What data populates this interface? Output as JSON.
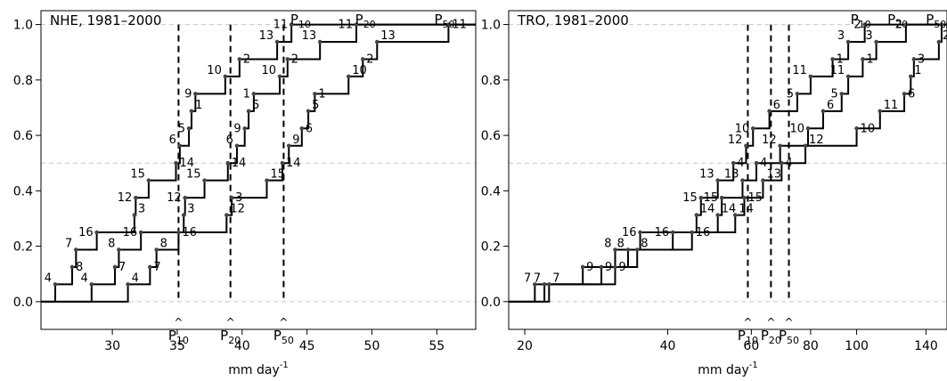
{
  "chart_data": [
    {
      "type": "line",
      "panel_label": "NHE, 1981–2000",
      "xlabel": "mm day",
      "xlabel_superscript": "-1",
      "ylabel": "",
      "xlim": [
        24.5,
        58
      ],
      "ylim": [
        -0.1,
        1.05
      ],
      "x_scale": "linear",
      "xticks": [
        30,
        35,
        40,
        45,
        50,
        55
      ],
      "yticks": [
        0.0,
        0.2,
        0.4,
        0.6,
        0.8,
        1.0
      ],
      "reference_lines": [
        0.0,
        0.5,
        1.0
      ],
      "estimates": [
        {
          "name": "P",
          "sub": "10",
          "x": 35.1
        },
        {
          "name": "P",
          "sub": "20",
          "x": 39.1
        },
        {
          "name": "P",
          "sub": "50",
          "x": 43.2
        }
      ],
      "series": [
        {
          "name": "P10",
          "label_sub": "10",
          "label_x": 44.5,
          "points": [
            {
              "x": 25.6,
              "y": 0.0625,
              "tag": "4"
            },
            {
              "x": 26.9,
              "y": 0.125,
              "tag": "8"
            },
            {
              "x": 27.2,
              "y": 0.1875,
              "tag": "7"
            },
            {
              "x": 28.8,
              "y": 0.25,
              "tag": "16"
            },
            {
              "x": 31.7,
              "y": 0.3125,
              "tag": "3"
            },
            {
              "x": 31.8,
              "y": 0.375,
              "tag": "12"
            },
            {
              "x": 32.8,
              "y": 0.4375,
              "tag": "15"
            },
            {
              "x": 34.9,
              "y": 0.5,
              "tag": "14"
            },
            {
              "x": 35.2,
              "y": 0.5625,
              "tag": "6"
            },
            {
              "x": 35.9,
              "y": 0.625,
              "tag": "5"
            },
            {
              "x": 36.1,
              "y": 0.6875,
              "tag": "1"
            },
            {
              "x": 36.4,
              "y": 0.75,
              "tag": "9"
            },
            {
              "x": 38.7,
              "y": 0.8125,
              "tag": "10"
            },
            {
              "x": 39.8,
              "y": 0.875,
              "tag": "2"
            },
            {
              "x": 42.7,
              "y": 0.9375,
              "tag": "13"
            },
            {
              "x": 43.8,
              "y": 1.0,
              "tag": "11"
            }
          ]
        },
        {
          "name": "P20",
          "label_sub": "20",
          "label_x": 49.5,
          "points": [
            {
              "x": 28.4,
              "y": 0.0625,
              "tag": "4"
            },
            {
              "x": 30.2,
              "y": 0.125,
              "tag": "7"
            },
            {
              "x": 30.5,
              "y": 0.1875,
              "tag": "8"
            },
            {
              "x": 32.2,
              "y": 0.25,
              "tag": "16"
            },
            {
              "x": 35.5,
              "y": 0.3125,
              "tag": "3"
            },
            {
              "x": 35.6,
              "y": 0.375,
              "tag": "12"
            },
            {
              "x": 37.1,
              "y": 0.4375,
              "tag": "15"
            },
            {
              "x": 38.9,
              "y": 0.5,
              "tag": "14"
            },
            {
              "x": 39.6,
              "y": 0.5625,
              "tag": "6"
            },
            {
              "x": 40.2,
              "y": 0.625,
              "tag": "9"
            },
            {
              "x": 40.5,
              "y": 0.6875,
              "tag": "5"
            },
            {
              "x": 40.9,
              "y": 0.75,
              "tag": "1"
            },
            {
              "x": 42.9,
              "y": 0.8125,
              "tag": "10"
            },
            {
              "x": 43.5,
              "y": 0.875,
              "tag": "2"
            },
            {
              "x": 46.0,
              "y": 0.9375,
              "tag": "13"
            },
            {
              "x": 48.8,
              "y": 1.0,
              "tag": "11"
            }
          ]
        },
        {
          "name": "P50",
          "label_sub": "50",
          "label_x": 55.6,
          "points": [
            {
              "x": 31.2,
              "y": 0.0625,
              "tag": "4"
            },
            {
              "x": 32.9,
              "y": 0.125,
              "tag": "7"
            },
            {
              "x": 33.4,
              "y": 0.1875,
              "tag": "8"
            },
            {
              "x": 35.1,
              "y": 0.25,
              "tag": "16"
            },
            {
              "x": 38.8,
              "y": 0.3125,
              "tag": "12"
            },
            {
              "x": 39.2,
              "y": 0.375,
              "tag": "3"
            },
            {
              "x": 41.9,
              "y": 0.4375,
              "tag": "15"
            },
            {
              "x": 43.1,
              "y": 0.5,
              "tag": "14"
            },
            {
              "x": 43.6,
              "y": 0.5625,
              "tag": "9"
            },
            {
              "x": 44.6,
              "y": 0.625,
              "tag": "6"
            },
            {
              "x": 45.1,
              "y": 0.6875,
              "tag": "5"
            },
            {
              "x": 45.6,
              "y": 0.75,
              "tag": "1"
            },
            {
              "x": 48.2,
              "y": 0.8125,
              "tag": "10"
            },
            {
              "x": 49.3,
              "y": 0.875,
              "tag": "2"
            },
            {
              "x": 50.4,
              "y": 0.9375,
              "tag": "13"
            },
            {
              "x": 55.9,
              "y": 1.0,
              "tag": "11"
            }
          ]
        }
      ]
    },
    {
      "type": "line",
      "panel_label": "TRO, 1981–2000",
      "xlabel": "mm day",
      "xlabel_superscript": "-1",
      "ylabel": "",
      "xlim": [
        18.5,
        155
      ],
      "ylim": [
        -0.1,
        1.05
      ],
      "x_scale": "log",
      "xticks": [
        20,
        40,
        60,
        80,
        100,
        140
      ],
      "yticks": [
        0.0,
        0.2,
        0.4,
        0.6,
        0.8,
        1.0
      ],
      "reference_lines": [
        0.0,
        0.5,
        1.0
      ],
      "estimates": [
        {
          "name": "P",
          "sub": "10",
          "x": 59
        },
        {
          "name": "P",
          "sub": "20",
          "x": 66
        },
        {
          "name": "P",
          "sub": "50",
          "x": 72
        }
      ],
      "series": [
        {
          "name": "P10",
          "label_sub": "10",
          "label_x": 102,
          "points": [
            {
              "x": 21.0,
              "y": 0.0625,
              "tag": "7"
            },
            {
              "x": 26.5,
              "y": 0.125,
              "tag": "9"
            },
            {
              "x": 31.0,
              "y": 0.1875,
              "tag": "8"
            },
            {
              "x": 35.0,
              "y": 0.25,
              "tag": "16"
            },
            {
              "x": 46.0,
              "y": 0.3125,
              "tag": "14"
            },
            {
              "x": 47.0,
              "y": 0.375,
              "tag": "15"
            },
            {
              "x": 51.0,
              "y": 0.4375,
              "tag": "13"
            },
            {
              "x": 55.0,
              "y": 0.5,
              "tag": "4"
            },
            {
              "x": 58.5,
              "y": 0.5625,
              "tag": "12"
            },
            {
              "x": 60.5,
              "y": 0.625,
              "tag": "10"
            },
            {
              "x": 65.5,
              "y": 0.6875,
              "tag": "6"
            },
            {
              "x": 75.0,
              "y": 0.75,
              "tag": "5"
            },
            {
              "x": 80.0,
              "y": 0.8125,
              "tag": "11"
            },
            {
              "x": 89.0,
              "y": 0.875,
              "tag": "1"
            },
            {
              "x": 96.0,
              "y": 0.9375,
              "tag": "3"
            },
            {
              "x": 104.0,
              "y": 1.0,
              "tag": "2"
            }
          ]
        },
        {
          "name": "P20",
          "label_sub": "20",
          "label_x": 122,
          "points": [
            {
              "x": 22.0,
              "y": 0.0625,
              "tag": "7"
            },
            {
              "x": 29.0,
              "y": 0.125,
              "tag": "9"
            },
            {
              "x": 33.0,
              "y": 0.1875,
              "tag": "8"
            },
            {
              "x": 41.0,
              "y": 0.25,
              "tag": "16"
            },
            {
              "x": 51.0,
              "y": 0.3125,
              "tag": "14"
            },
            {
              "x": 52.0,
              "y": 0.375,
              "tag": "15"
            },
            {
              "x": 57.5,
              "y": 0.4375,
              "tag": "13"
            },
            {
              "x": 61.5,
              "y": 0.5,
              "tag": "4"
            },
            {
              "x": 69.0,
              "y": 0.5625,
              "tag": "12"
            },
            {
              "x": 79.0,
              "y": 0.625,
              "tag": "10"
            },
            {
              "x": 85.0,
              "y": 0.6875,
              "tag": "6"
            },
            {
              "x": 93.0,
              "y": 0.75,
              "tag": "5"
            },
            {
              "x": 96.0,
              "y": 0.8125,
              "tag": "11"
            },
            {
              "x": 103.0,
              "y": 0.875,
              "tag": "1"
            },
            {
              "x": 110.0,
              "y": 0.9375,
              "tag": "3"
            },
            {
              "x": 127.0,
              "y": 1.0,
              "tag": "2"
            }
          ]
        },
        {
          "name": "P50",
          "label_sub": "50",
          "label_x": 147,
          "points": [
            {
              "x": 22.5,
              "y": 0.0625,
              "tag": "7"
            },
            {
              "x": 31.0,
              "y": 0.125,
              "tag": "9"
            },
            {
              "x": 34.5,
              "y": 0.1875,
              "tag": "8"
            },
            {
              "x": 45.0,
              "y": 0.25,
              "tag": "16"
            },
            {
              "x": 55.5,
              "y": 0.3125,
              "tag": "14"
            },
            {
              "x": 58.0,
              "y": 0.375,
              "tag": "15"
            },
            {
              "x": 63.5,
              "y": 0.4375,
              "tag": "13"
            },
            {
              "x": 69.5,
              "y": 0.5,
              "tag": "4"
            },
            {
              "x": 78.0,
              "y": 0.5625,
              "tag": "12"
            },
            {
              "x": 100.0,
              "y": 0.625,
              "tag": "10"
            },
            {
              "x": 112.0,
              "y": 0.6875,
              "tag": "11"
            },
            {
              "x": 126.0,
              "y": 0.75,
              "tag": "6"
            },
            {
              "x": 130.0,
              "y": 0.8125,
              "tag": "1"
            },
            {
              "x": 132.0,
              "y": 0.875,
              "tag": "3"
            },
            {
              "x": 149.0,
              "y": 0.9375,
              "tag": "2"
            },
            {
              "x": 151.0,
              "y": 1.0,
              "tag": "5"
            }
          ]
        }
      ]
    }
  ]
}
